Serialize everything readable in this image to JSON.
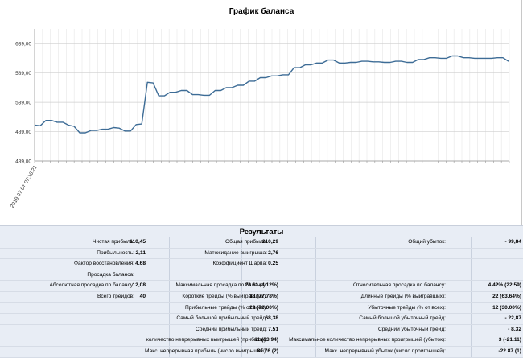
{
  "chart_data": {
    "type": "line",
    "title": "График баланса",
    "y_ticks": [
      "639,00",
      "589,00",
      "539,00",
      "489,00",
      "439,00"
    ],
    "y_tick_values": [
      639,
      589,
      539,
      489,
      439
    ],
    "ylim": [
      439,
      664
    ],
    "x_tick_label": "2019.07.07 07:16:21",
    "grid": true,
    "color": "#3d6c96",
    "values": [
      500,
      499,
      508,
      508,
      505,
      505,
      500,
      498,
      487,
      487,
      491,
      491,
      493,
      493,
      496,
      495,
      490,
      490,
      501,
      502,
      573,
      572,
      550,
      550,
      556,
      556,
      559,
      559,
      552,
      552,
      551,
      551,
      559,
      559,
      564,
      564,
      568,
      568,
      575,
      575,
      581,
      581,
      584,
      584,
      586,
      586,
      598,
      598,
      603,
      603,
      606,
      606,
      611,
      611,
      606,
      606,
      607,
      607,
      609,
      609,
      608,
      608,
      607,
      607,
      609,
      609,
      607,
      607,
      612,
      612,
      615,
      615,
      614,
      614,
      618,
      618,
      615,
      615,
      614,
      614,
      614,
      614,
      615,
      615,
      609
    ]
  },
  "results": {
    "title": "Результаты",
    "col1": [
      {
        "label": "Чистая прибыль:",
        "value": "110,45"
      },
      {
        "label": "Прибыльность:",
        "value": "2,11"
      },
      {
        "label": "Фактор восстановления:",
        "value": "4,68"
      },
      {
        "label": "Просадка баланса:",
        "value": ""
      },
      {
        "label": "Абсолютная просадка по балансу:",
        "value": "12,08"
      },
      {
        "label": "Всего трейдов:",
        "value": "40"
      }
    ],
    "col2": [
      {
        "label": "Общая прибыль:",
        "value": "210,29"
      },
      {
        "label": "Матожидание выигрыша:",
        "value": "2,76"
      },
      {
        "label": "Коэффициент Шарпа:",
        "value": "0,25"
      },
      {
        "label": "",
        "value": ""
      },
      {
        "label": "Максимальная просадка по балансу:",
        "value": "23.61 (4.12%)"
      },
      {
        "label": "Короткие трейды (% выигравших):",
        "value": "18 (77.78%)"
      },
      {
        "label": "Прибыльные трейды (% от всех):",
        "value": "28 (70.00%)"
      },
      {
        "label": "Самый большой прибыльный трейд:",
        "value": "68,38"
      },
      {
        "label": "Средний прибыльный трейд:",
        "value": "7,51"
      },
      {
        "label": "количество непрерывных выигрышей (прибыль):",
        "value": "11 (63.94)"
      },
      {
        "label": "Макс. непрерывная прибыль (число выигрышей):",
        "value": "81.76 (2)"
      }
    ],
    "col3": [
      {
        "label": "Общий убыток:",
        "value": "- 99,84"
      },
      {
        "label": "",
        "value": ""
      },
      {
        "label": "",
        "value": ""
      },
      {
        "label": "",
        "value": ""
      },
      {
        "label": "Относительная просадка по балансу:",
        "value": "4.42% (22.59)"
      },
      {
        "label": "Длинные трейды (% выигравших):",
        "value": "22 (63.64%)"
      },
      {
        "label": "Убыточные трейды (% от всех):",
        "value": "12 (30.00%)"
      },
      {
        "label": "Самый большой убыточный трейд:",
        "value": "- 22,87"
      },
      {
        "label": "Средний убыточный трейд:",
        "value": "- 8,32"
      },
      {
        "label": "Максимальное количество непрерывных проигрышей (убыток):",
        "value": "3 (-21.11)"
      },
      {
        "label": "Макс. непрерывный убыток (число проигрышей):",
        "value": "-22.87 (1)"
      }
    ]
  }
}
